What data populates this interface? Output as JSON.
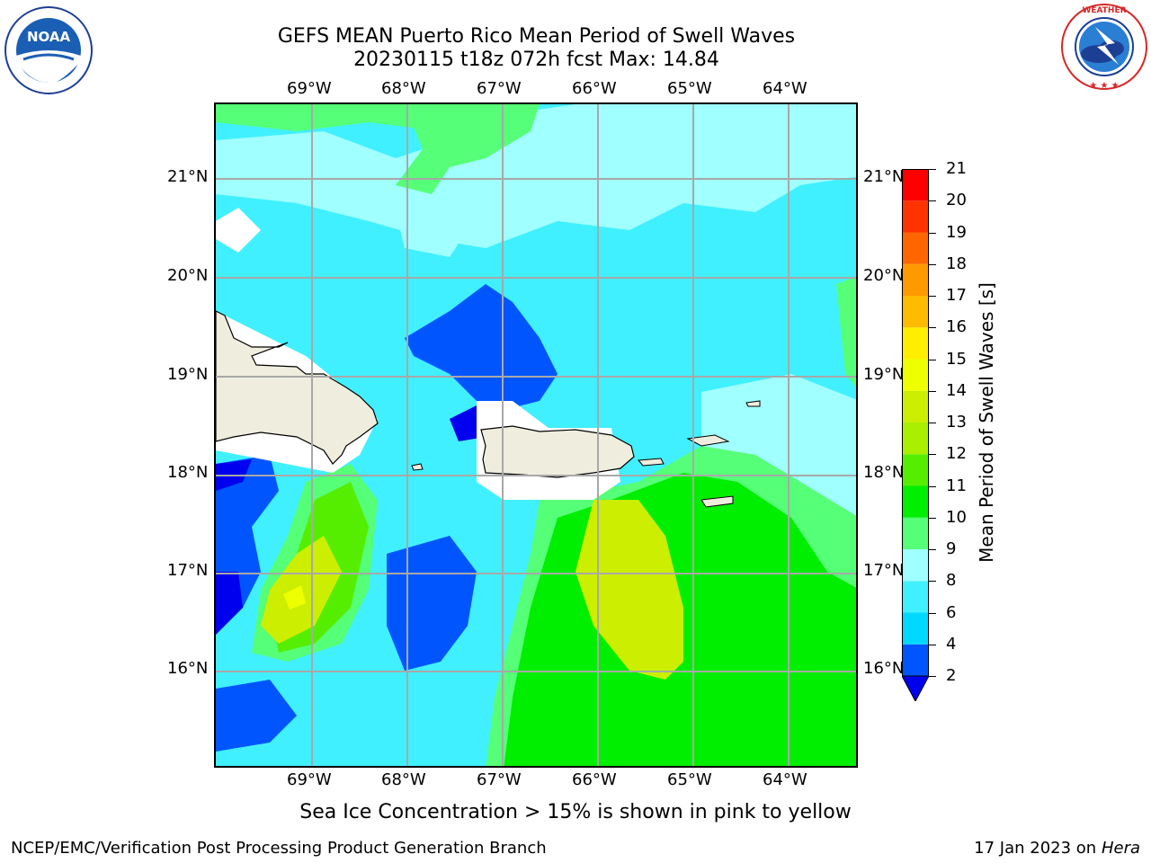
{
  "header": {
    "title_line1": "GEFS MEAN Puerto Rico Mean Period of Swell Waves",
    "title_line2": "20230115 t18z 072h fcst   Max: 14.84"
  },
  "logos": {
    "left": "NOAA",
    "left_ring_text": "NATIONAL OCEANIC AND ATMOSPHERIC ADMINISTRATION • U.S. DEPARTMENT OF COMMERCE",
    "right_ring_text": "NATIONAL WEATHER SERVICE"
  },
  "map": {
    "lon_labels": [
      "69°W",
      "68°W",
      "67°W",
      "66°W",
      "65°W",
      "64°W"
    ],
    "lat_labels": [
      "21°N",
      "20°N",
      "19°N",
      "18°N",
      "17°N",
      "16°N"
    ],
    "land_color": "#efedde",
    "mask_color": "#ffffff"
  },
  "colorbar": {
    "label": "Mean Period of Swell Waves [s]",
    "tick_labels": [
      "2",
      "4",
      "6",
      "8",
      "9",
      "10",
      "11",
      "12",
      "13",
      "14",
      "15",
      "16",
      "17",
      "18",
      "19",
      "20",
      "21"
    ],
    "colors": [
      "#0055ff",
      "#00d9ff",
      "#40f0ff",
      "#a0ffff",
      "#55ff77",
      "#00ee00",
      "#55ee00",
      "#aaee00",
      "#ccee00",
      "#eeff00",
      "#ffee00",
      "#ffbb00",
      "#ff9900",
      "#ff6600",
      "#ff3300",
      "#ff0000"
    ],
    "under_color": "#0000ee"
  },
  "caption": "Sea Ice Concentration > 15% is shown in pink to yellow",
  "footer": {
    "left": "NCEP/EMC/Verification Post Processing Product Generation Branch",
    "right_date": "17 Jan 2023 on ",
    "right_host": "Hera"
  }
}
